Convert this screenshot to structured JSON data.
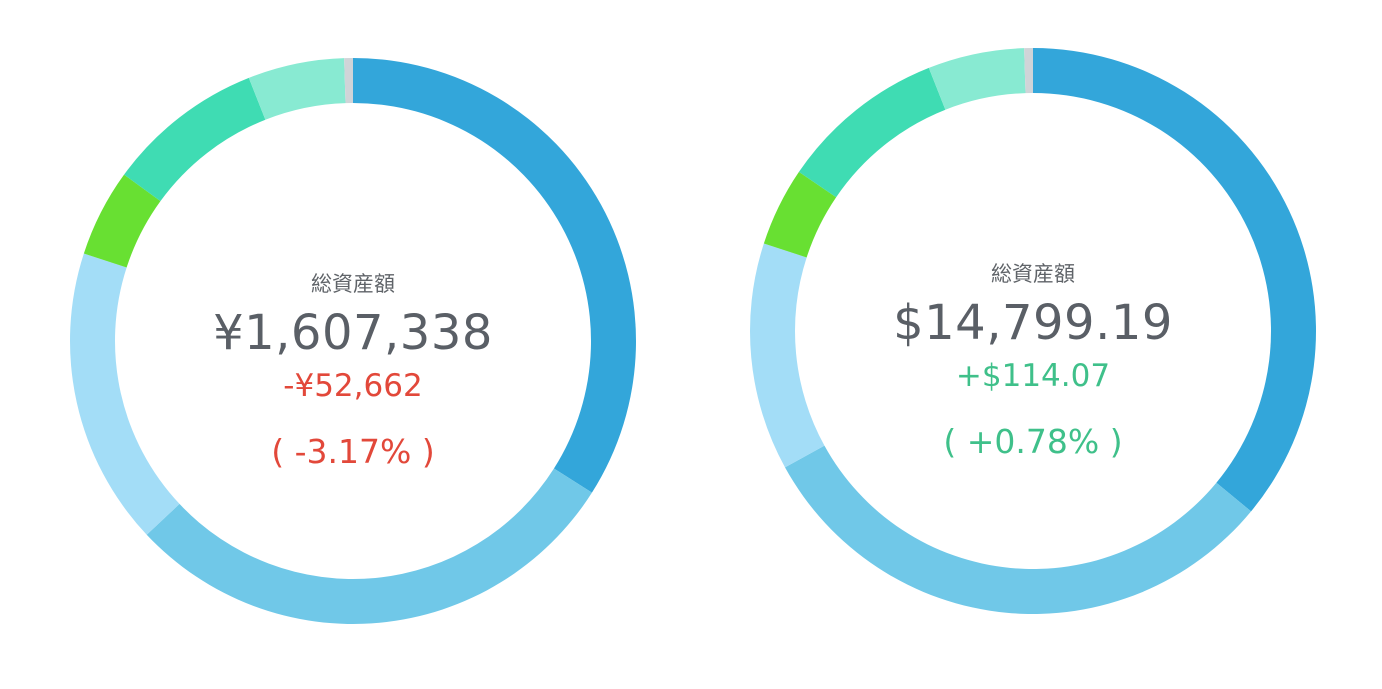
{
  "chart_data": [
    {
      "type": "pie",
      "segments": [
        {
          "value": 34,
          "color": "#33a6da"
        },
        {
          "value": 29,
          "color": "#70c8e8"
        },
        {
          "value": 17,
          "color": "#a3ddf7"
        },
        {
          "value": 5,
          "color": "#68e032"
        },
        {
          "value": 9,
          "color": "#3fdcb3"
        },
        {
          "value": 5.5,
          "color": "#88ead2"
        },
        {
          "value": 0.5,
          "color": "#d0d4d8"
        }
      ],
      "center": {
        "title": "総資産額",
        "total": "¥1,607,338",
        "change": "-¥52,662",
        "change_pct": "( -3.17% )",
        "trend": "negative"
      }
    },
    {
      "type": "pie",
      "segments": [
        {
          "value": 36,
          "color": "#33a6da"
        },
        {
          "value": 31,
          "color": "#70c8e8"
        },
        {
          "value": 13,
          "color": "#a3ddf7"
        },
        {
          "value": 4.5,
          "color": "#68e032"
        },
        {
          "value": 9.5,
          "color": "#3fdcb3"
        },
        {
          "value": 5.5,
          "color": "#88ead2"
        },
        {
          "value": 0.5,
          "color": "#d0d4d8"
        }
      ],
      "center": {
        "title": "総資産額",
        "total": "$14,799.19",
        "change": "+$114.07",
        "change_pct": "( +0.78% )",
        "trend": "positive"
      }
    }
  ],
  "colors": {
    "negative": "#e2483a",
    "positive": "#3fc08a",
    "text": "#5a5f66"
  }
}
